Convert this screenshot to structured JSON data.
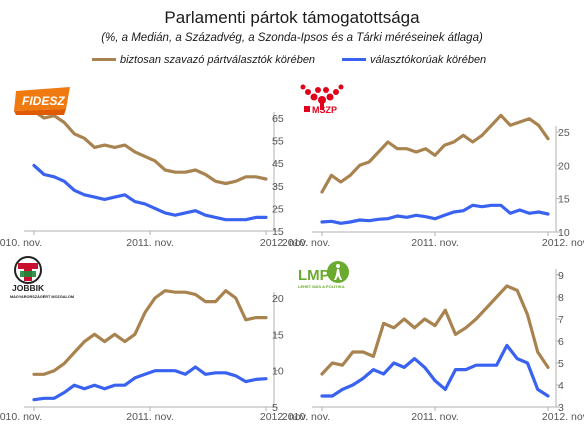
{
  "title": "Parlamenti pártok támogatottsága",
  "subtitle": "(%, a Medián, a Századvég, a Szonda-Ipsos és a Tárki méréseinek átlaga)",
  "legend": {
    "sure_voters": "biztosan szavazó pártválasztók körében",
    "all_voters": "választókorúak körében"
  },
  "colors": {
    "sure_voters": "#a9834f",
    "all_voters": "#3a62f0"
  },
  "x_labels": [
    "2010. nov.",
    "2011. nov.",
    "2012. nov."
  ],
  "logos": {
    "fidesz": "FIDESZ",
    "mszp": "MSZP",
    "jobbik": "JOBBIK",
    "jobbik_sub": "MAGYARORSZÁGÉRT MOZGALOM",
    "lmp": "LMP",
    "lmp_sub": "LEHET MÁS A POLITIKA"
  },
  "chart_data": [
    {
      "type": "line",
      "party": "Fidesz",
      "ylim": [
        15,
        65
      ],
      "yticks": [
        15,
        25,
        35,
        45,
        55,
        65
      ],
      "series": [
        {
          "name": "biztosan szavazó pártválasztók körében",
          "values": [
            68,
            65,
            66,
            63,
            58,
            56,
            52,
            53,
            52,
            53,
            50,
            48,
            46,
            42,
            41,
            41,
            42,
            40,
            37,
            36,
            37,
            39,
            39,
            38
          ]
        },
        {
          "name": "választókorúak körében",
          "values": [
            44,
            40,
            39,
            37,
            33,
            31,
            30,
            29,
            30,
            31,
            28,
            27,
            25,
            23,
            22,
            23,
            24,
            22,
            21,
            20,
            20,
            20,
            21,
            21
          ]
        }
      ]
    },
    {
      "type": "line",
      "party": "MSZP",
      "ylim": [
        10,
        25
      ],
      "yticks": [
        10,
        15,
        20,
        25
      ],
      "series": [
        {
          "name": "biztosan szavazó pártválasztók körében",
          "values": [
            16,
            18.5,
            17.5,
            18.5,
            20,
            20.5,
            22,
            23.5,
            22.5,
            22.5,
            22,
            22.5,
            21.5,
            23,
            23.5,
            24.5,
            23.5,
            24.5,
            26,
            27.5,
            26,
            26.5,
            27,
            26,
            24
          ]
        },
        {
          "name": "választókorúak körében",
          "values": [
            11.5,
            11.6,
            11.3,
            11.5,
            11.8,
            11.7,
            11.9,
            12,
            12.4,
            12.2,
            12.5,
            12.3,
            12,
            12.5,
            13,
            13.2,
            14,
            13.8,
            14,
            14,
            12.8,
            13.3,
            12.8,
            13,
            12.7
          ]
        }
      ]
    },
    {
      "type": "line",
      "party": "Jobbik",
      "ylim": [
        5,
        20
      ],
      "yticks": [
        5,
        10,
        15,
        20
      ],
      "series": [
        {
          "name": "biztosan szavazó pártválasztók körében",
          "values": [
            9.5,
            9.5,
            10,
            11,
            12.5,
            14,
            15,
            14,
            15,
            14,
            15,
            18,
            20,
            21,
            20.8,
            20.8,
            20.5,
            19.5,
            19.5,
            21,
            20,
            17,
            17.3,
            17.3
          ]
        },
        {
          "name": "választókorúak körében",
          "values": [
            6,
            6.2,
            6.2,
            7,
            8,
            7.5,
            8,
            7.5,
            8,
            8,
            9,
            9.5,
            10,
            10,
            10,
            9.5,
            10.5,
            9.5,
            9.7,
            9.7,
            9.3,
            8.5,
            8.8,
            8.9
          ]
        }
      ]
    },
    {
      "type": "line",
      "party": "LMP",
      "ylim": [
        3,
        9
      ],
      "yticks": [
        3,
        4,
        5,
        6,
        7,
        8,
        9
      ],
      "series": [
        {
          "name": "biztosan szavazó pártválasztók körében",
          "values": [
            4.5,
            5,
            4.9,
            5.5,
            5.5,
            5.3,
            6.8,
            6.6,
            7,
            6.6,
            7,
            6.7,
            7.4,
            6.3,
            6.6,
            7,
            7.5,
            8,
            8.5,
            8.3,
            7.2,
            5.5,
            4.8
          ]
        },
        {
          "name": "választókorúak körében",
          "values": [
            3.5,
            3.5,
            3.8,
            4,
            4.3,
            4.7,
            4.5,
            5,
            4.8,
            5.2,
            4.8,
            4.2,
            3.8,
            4.7,
            4.7,
            4.9,
            4.9,
            4.9,
            5.8,
            5.2,
            5,
            3.8,
            3.5
          ]
        }
      ]
    }
  ]
}
